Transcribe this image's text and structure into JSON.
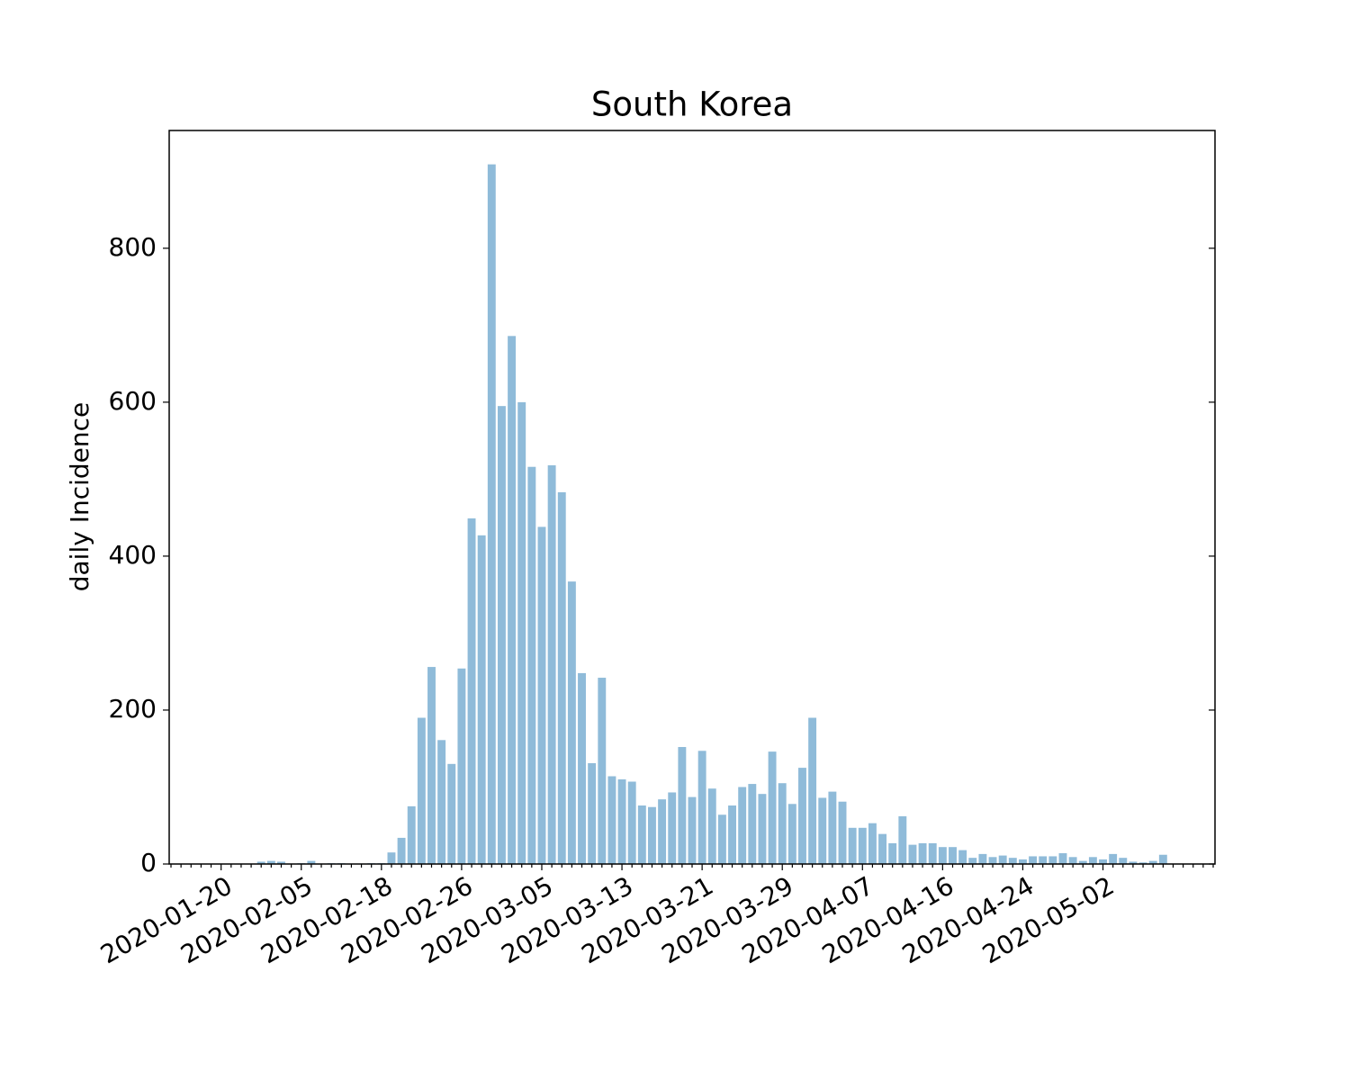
{
  "chart_data": {
    "type": "bar",
    "title": "South Korea",
    "y_label": "daily Incidence",
    "categories": [
      null,
      null,
      null,
      null,
      null,
      "2020-01-20",
      null,
      null,
      null,
      null,
      null,
      null,
      null,
      "2020-02-05",
      null,
      null,
      null,
      null,
      null,
      null,
      null,
      "2020-02-18",
      null,
      null,
      null,
      null,
      null,
      null,
      null,
      "2020-02-26",
      null,
      null,
      null,
      null,
      null,
      null,
      null,
      "2020-03-05",
      null,
      null,
      null,
      null,
      null,
      null,
      null,
      "2020-03-13",
      null,
      null,
      null,
      null,
      null,
      null,
      null,
      "2020-03-21",
      null,
      null,
      null,
      null,
      null,
      null,
      null,
      "2020-03-29",
      null,
      null,
      null,
      null,
      null,
      null,
      null,
      "2020-04-07",
      null,
      null,
      null,
      null,
      null,
      null,
      null,
      "2020-04-16",
      null,
      null,
      null,
      null,
      null,
      null,
      null,
      "2020-04-24",
      null,
      null,
      null,
      null,
      null,
      null,
      null,
      "2020-05-02",
      null,
      null,
      null,
      null,
      null,
      null,
      null,
      null,
      null,
      null,
      null
    ],
    "values": [
      0,
      0,
      0,
      0,
      0,
      0,
      0,
      0,
      0,
      3,
      4,
      3,
      0,
      1,
      4,
      0,
      1,
      1,
      0,
      0,
      1,
      1,
      15,
      34,
      75,
      190,
      256,
      161,
      130,
      254,
      449,
      427,
      909,
      595,
      686,
      600,
      516,
      438,
      518,
      483,
      367,
      248,
      131,
      242,
      114,
      110,
      107,
      76,
      74,
      84,
      93,
      152,
      87,
      147,
      98,
      64,
      76,
      100,
      104,
      91,
      146,
      105,
      78,
      125,
      190,
      86,
      94,
      81,
      47,
      47,
      53,
      39,
      27,
      62,
      25,
      27,
      27,
      22,
      22,
      18,
      8,
      13,
      9,
      11,
      8,
      6,
      10,
      10,
      10,
      14,
      9,
      4,
      9,
      6,
      13,
      8,
      3,
      2,
      4,
      12,
      0,
      0,
      0,
      0,
      0
    ],
    "color": "#8fbbd9",
    "ylim": [
      0,
      953
    ],
    "yticks": [
      0,
      200,
      400,
      600,
      800
    ]
  }
}
